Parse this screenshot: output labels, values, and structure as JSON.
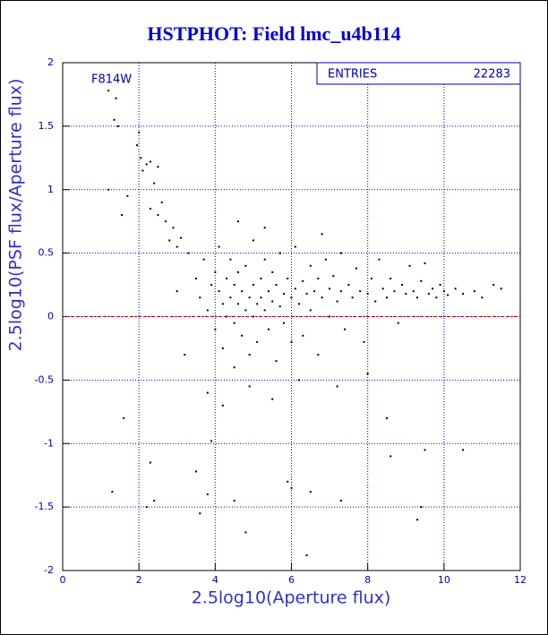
{
  "chart_data": {
    "type": "scatter",
    "title": "HSTPHOT: Field lmc_u4b114",
    "x_label": "2.5log10(Aperture flux)",
    "y_label": "2.5log10(PSF flux/Aperture flux)",
    "annotation": "F814W",
    "stats": {
      "label": "ENTRIES",
      "value": 22283
    },
    "reference_line": 0,
    "reference_color": "#cc0000",
    "color": "#000000",
    "grid": true,
    "xlim": [
      0,
      12
    ],
    "xticks": [
      0,
      2,
      4,
      6,
      8,
      10,
      12
    ],
    "ylim": [
      -2,
      2
    ],
    "yticks": [
      -2,
      -1.5,
      -1,
      -0.5,
      0,
      0.5,
      1,
      1.5,
      2
    ],
    "x": [
      1.2,
      1.4,
      1.35,
      1.45,
      2.0,
      1.95,
      2.05,
      2.1,
      2.2,
      2.3,
      2.5,
      2.4,
      2.6,
      2.5,
      2.7,
      2.9,
      2.8,
      3.1,
      3.0,
      3.3,
      1.55,
      1.2,
      1.7,
      2.3,
      1.3,
      2.2,
      2.4,
      3.5,
      3.6,
      3.9,
      3.8,
      4.5,
      4.8,
      6.0,
      6.5,
      6.4,
      8.6,
      9.5,
      10.5,
      9.3,
      9.4,
      5.9,
      7.3,
      2.3,
      1.6,
      3.5,
      3.6,
      3.7,
      3.8,
      3.9,
      4.0,
      4.0,
      4.1,
      4.1,
      4.2,
      4.2,
      4.3,
      4.3,
      4.4,
      4.4,
      4.5,
      4.5,
      4.5,
      4.6,
      4.6,
      4.7,
      4.7,
      4.8,
      4.8,
      4.9,
      4.9,
      5.0,
      5.0,
      5.0,
      5.1,
      5.1,
      5.2,
      5.2,
      5.3,
      5.3,
      5.4,
      5.4,
      5.5,
      5.5,
      5.6,
      5.6,
      5.7,
      5.7,
      5.8,
      5.8,
      5.9,
      6.0,
      6.0,
      6.1,
      6.1,
      6.2,
      6.3,
      6.3,
      6.4,
      6.5,
      6.5,
      6.6,
      6.7,
      6.7,
      6.8,
      6.9,
      7.0,
      7.0,
      7.1,
      7.2,
      7.3,
      7.3,
      7.4,
      7.5,
      7.6,
      7.7,
      7.8,
      7.9,
      8.0,
      8.1,
      8.2,
      8.3,
      8.4,
      8.5,
      8.6,
      8.7,
      8.8,
      8.9,
      9.0,
      9.1,
      9.2,
      9.3,
      9.4,
      9.5,
      9.6,
      9.7,
      9.8,
      9.9,
      10.0,
      10.1,
      10.3,
      10.5,
      10.8,
      11.0,
      11.3,
      11.5,
      3.8,
      4.2,
      4.9,
      5.5,
      6.2,
      7.2,
      8.0,
      3.2,
      3.0,
      8.5,
      6.8,
      5.3,
      4.6
    ],
    "values": [
      1.78,
      1.72,
      1.55,
      1.5,
      1.45,
      1.35,
      1.25,
      1.15,
      1.2,
      1.22,
      1.18,
      1.05,
      0.9,
      0.8,
      0.75,
      0.7,
      0.6,
      0.62,
      0.55,
      0.5,
      0.8,
      1.0,
      0.95,
      0.85,
      -1.38,
      -1.5,
      -1.45,
      -1.22,
      -1.55,
      -0.98,
      -1.4,
      -1.45,
      -1.7,
      -1.35,
      -1.38,
      -1.88,
      -1.1,
      -1.05,
      -1.05,
      -1.6,
      -1.5,
      -1.3,
      -1.45,
      -1.15,
      -0.8,
      0.3,
      0.15,
      0.45,
      0.05,
      0.25,
      0.35,
      -0.1,
      0.2,
      0.55,
      0.1,
      -0.25,
      0.3,
      0.0,
      0.15,
      0.45,
      -0.05,
      0.25,
      -0.4,
      0.1,
      0.35,
      0.2,
      -0.15,
      0.05,
      0.4,
      0.15,
      -0.3,
      0.25,
      0.0,
      0.6,
      0.1,
      -0.2,
      0.3,
      0.15,
      0.05,
      0.45,
      0.2,
      -0.1,
      0.12,
      0.35,
      0.25,
      -0.35,
      0.08,
      0.5,
      0.18,
      -0.05,
      0.3,
      0.15,
      -0.2,
      0.22,
      0.55,
      0.1,
      0.28,
      -0.15,
      0.18,
      0.4,
      0.05,
      0.2,
      0.3,
      -0.3,
      0.15,
      0.45,
      0.22,
      0.0,
      0.32,
      0.12,
      0.5,
      0.2,
      -0.1,
      0.25,
      0.15,
      0.38,
      0.2,
      -0.2,
      0.18,
      0.3,
      0.12,
      0.45,
      0.22,
      0.15,
      0.3,
      0.2,
      -0.05,
      0.25,
      0.18,
      0.4,
      0.2,
      0.15,
      0.28,
      0.42,
      0.18,
      0.22,
      0.15,
      0.25,
      0.2,
      0.17,
      0.22,
      0.18,
      0.2,
      0.15,
      0.25,
      0.22,
      -0.6,
      -0.7,
      -0.55,
      -0.65,
      -0.5,
      -0.55,
      -0.45,
      -0.3,
      0.2,
      -0.8,
      0.65,
      0.7,
      0.75
    ]
  }
}
